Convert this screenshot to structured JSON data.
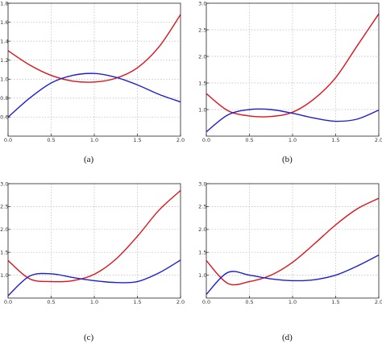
{
  "figure": {
    "captions": [
      "(a)",
      "(b)",
      "(c)",
      "(d)"
    ],
    "colors": {
      "red_series": "#e0121a",
      "blue_series": "#1f1fd0",
      "grid": "#b8b8b8",
      "axis": "#222222"
    }
  },
  "chart_data": [
    {
      "type": "line",
      "xlim": [
        0.0,
        2.0
      ],
      "ylim": [
        0.4,
        1.8
      ],
      "x_ticks": [
        "0.0",
        "0.5",
        "1.0",
        "1.5",
        "2.0"
      ],
      "y_ticks": [
        "0.6",
        "0.8",
        "1.0",
        "1.2",
        "1.4",
        "1.6",
        "1.8"
      ],
      "series": [
        {
          "color": "#e0121a",
          "x": [
            0,
            0.25,
            0.5,
            0.75,
            1.0,
            1.25,
            1.5,
            1.75,
            2.0
          ],
          "values": [
            1.3,
            1.15,
            1.04,
            0.98,
            0.97,
            1.01,
            1.12,
            1.34,
            1.68
          ]
        },
        {
          "color": "#1f1fd0",
          "x": [
            0,
            0.25,
            0.5,
            0.75,
            1.0,
            1.25,
            1.5,
            1.75,
            2.0
          ],
          "values": [
            0.6,
            0.8,
            0.96,
            1.04,
            1.06,
            1.02,
            0.94,
            0.84,
            0.76
          ]
        }
      ]
    },
    {
      "type": "line",
      "xlim": [
        0.0,
        2.0
      ],
      "ylim": [
        0.5,
        3.0
      ],
      "x_ticks": [
        "0.0",
        "0.5",
        "1.0",
        "1.5",
        "2.0"
      ],
      "y_ticks": [
        "1.0",
        "1.5",
        "2.0",
        "2.5",
        "3.0"
      ],
      "series": [
        {
          "color": "#e0121a",
          "x": [
            0,
            0.25,
            0.5,
            0.75,
            1.0,
            1.25,
            1.5,
            1.75,
            2.0
          ],
          "values": [
            1.3,
            0.98,
            0.88,
            0.87,
            0.95,
            1.2,
            1.6,
            2.2,
            2.8
          ]
        },
        {
          "color": "#1f1fd0",
          "x": [
            0,
            0.25,
            0.5,
            0.75,
            1.0,
            1.25,
            1.5,
            1.75,
            2.0
          ],
          "values": [
            0.58,
            0.9,
            1.0,
            1.0,
            0.93,
            0.84,
            0.78,
            0.82,
            0.99
          ]
        }
      ]
    },
    {
      "type": "line",
      "xlim": [
        0.0,
        2.0
      ],
      "ylim": [
        0.5,
        3.0
      ],
      "x_ticks": [
        "0.0",
        "0.5",
        "1.0",
        "1.5",
        "2.0"
      ],
      "y_ticks": [
        "1.0",
        "1.5",
        "2.0",
        "2.5",
        "3.0"
      ],
      "series": [
        {
          "color": "#e0121a",
          "x": [
            0,
            0.25,
            0.5,
            0.75,
            1.0,
            1.25,
            1.5,
            1.75,
            2.0
          ],
          "values": [
            1.32,
            0.92,
            0.86,
            0.88,
            1.02,
            1.35,
            1.85,
            2.42,
            2.85
          ]
        },
        {
          "color": "#1f1fd0",
          "x": [
            0,
            0.25,
            0.5,
            0.75,
            1.0,
            1.25,
            1.5,
            1.75,
            2.0
          ],
          "values": [
            0.55,
            0.98,
            1.03,
            0.95,
            0.88,
            0.84,
            0.86,
            1.05,
            1.33
          ]
        }
      ]
    },
    {
      "type": "line",
      "xlim": [
        0.0,
        2.0
      ],
      "ylim": [
        0.5,
        3.0
      ],
      "x_ticks": [
        "0.0",
        "0.5",
        "1.0",
        "1.5",
        "2.0"
      ],
      "y_ticks": [
        "1.0",
        "1.5",
        "2.0",
        "2.5",
        "3.0"
      ],
      "series": [
        {
          "color": "#e0121a",
          "x": [
            0,
            0.25,
            0.5,
            0.75,
            1.0,
            1.25,
            1.5,
            1.75,
            2.0
          ],
          "values": [
            1.32,
            0.82,
            0.86,
            1.0,
            1.28,
            1.68,
            2.1,
            2.45,
            2.68
          ]
        },
        {
          "color": "#1f1fd0",
          "x": [
            0,
            0.25,
            0.5,
            0.75,
            1.0,
            1.25,
            1.5,
            1.75,
            2.0
          ],
          "values": [
            0.58,
            1.06,
            1.0,
            0.92,
            0.88,
            0.9,
            1.0,
            1.2,
            1.44
          ]
        }
      ]
    }
  ]
}
